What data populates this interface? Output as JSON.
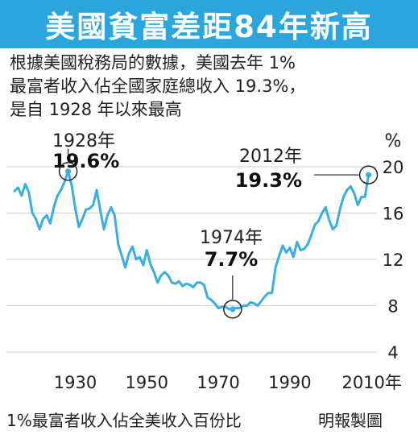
{
  "header": {
    "title": "美國貧富差距84年新高",
    "subtitle_lines": [
      "根據美國稅務局的數據，美國去年 1%",
      "最富者收入佔全國家庭總收入 19.3%，",
      "是自 1928 年以來最高"
    ]
  },
  "chart_data": {
    "type": "line",
    "title": "美國貧富差距84年新高",
    "xlabel": "",
    "ylabel": "%",
    "xlim": [
      1913,
      2013
    ],
    "ylim": [
      4,
      20
    ],
    "x_ticks": [
      "1930",
      "1950",
      "1970",
      "1990",
      "2010年"
    ],
    "x_tick_values": [
      1930,
      1950,
      1970,
      1990,
      2010
    ],
    "y_ticks": [
      4,
      8,
      12,
      16,
      20
    ],
    "grid": "horizontal",
    "y_axis_position": "right",
    "series": [
      {
        "values": [
          [
            1913,
            17.9
          ],
          [
            1914,
            18.2
          ],
          [
            1915,
            17.5
          ],
          [
            1916,
            18.5
          ],
          [
            1917,
            17.8
          ],
          [
            1918,
            16.0
          ],
          [
            1919,
            15.5
          ],
          [
            1920,
            14.6
          ],
          [
            1921,
            15.5
          ],
          [
            1922,
            15.8
          ],
          [
            1923,
            15.1
          ],
          [
            1924,
            16.5
          ],
          [
            1925,
            17.5
          ],
          [
            1926,
            18.0
          ],
          [
            1927,
            18.7
          ],
          [
            1928,
            19.6
          ],
          [
            1929,
            18.4
          ],
          [
            1930,
            16.4
          ],
          [
            1931,
            14.8
          ],
          [
            1932,
            15.5
          ],
          [
            1933,
            16.3
          ],
          [
            1934,
            16.4
          ],
          [
            1935,
            16.7
          ],
          [
            1936,
            18.0
          ],
          [
            1937,
            16.2
          ],
          [
            1938,
            14.6
          ],
          [
            1939,
            15.8
          ],
          [
            1940,
            16.5
          ],
          [
            1941,
            15.8
          ],
          [
            1942,
            13.3
          ],
          [
            1943,
            12.3
          ],
          [
            1944,
            11.3
          ],
          [
            1945,
            12.5
          ],
          [
            1946,
            13.1
          ],
          [
            1947,
            12.0
          ],
          [
            1948,
            12.2
          ],
          [
            1949,
            11.5
          ],
          [
            1950,
            12.8
          ],
          [
            1951,
            11.6
          ],
          [
            1952,
            10.9
          ],
          [
            1953,
            10.0
          ],
          [
            1954,
            10.6
          ],
          [
            1955,
            10.9
          ],
          [
            1956,
            10.6
          ],
          [
            1957,
            10.0
          ],
          [
            1958,
            9.9
          ],
          [
            1959,
            10.1
          ],
          [
            1960,
            9.7
          ],
          [
            1961,
            9.9
          ],
          [
            1962,
            9.8
          ],
          [
            1963,
            9.6
          ],
          [
            1964,
            10.0
          ],
          [
            1965,
            10.0
          ],
          [
            1966,
            9.8
          ],
          [
            1967,
            8.7
          ],
          [
            1968,
            8.5
          ],
          [
            1969,
            8.2
          ],
          [
            1970,
            7.8
          ],
          [
            1971,
            7.9
          ],
          [
            1972,
            7.9
          ],
          [
            1973,
            7.7
          ],
          [
            1974,
            7.7
          ],
          [
            1975,
            7.8
          ],
          [
            1976,
            7.8
          ],
          [
            1977,
            8.0
          ],
          [
            1978,
            8.0
          ],
          [
            1979,
            8.3
          ],
          [
            1980,
            8.2
          ],
          [
            1981,
            8.0
          ],
          [
            1982,
            8.4
          ],
          [
            1983,
            8.8
          ],
          [
            1984,
            9.1
          ],
          [
            1985,
            9.1
          ],
          [
            1986,
            11.3
          ],
          [
            1987,
            12.3
          ],
          [
            1988,
            13.2
          ],
          [
            1989,
            12.6
          ],
          [
            1990,
            13.0
          ],
          [
            1991,
            12.2
          ],
          [
            1992,
            13.5
          ],
          [
            1993,
            12.8
          ],
          [
            1994,
            12.9
          ],
          [
            1995,
            13.3
          ],
          [
            1996,
            14.1
          ],
          [
            1997,
            15.0
          ],
          [
            1998,
            15.3
          ],
          [
            1999,
            16.0
          ],
          [
            2000,
            16.5
          ],
          [
            2001,
            15.4
          ],
          [
            2002,
            14.6
          ],
          [
            2003,
            14.9
          ],
          [
            2004,
            16.3
          ],
          [
            2005,
            17.4
          ],
          [
            2006,
            18.0
          ],
          [
            2007,
            18.3
          ],
          [
            2008,
            17.7
          ],
          [
            2009,
            16.7
          ],
          [
            2010,
            17.4
          ],
          [
            2011,
            17.4
          ],
          [
            2012,
            19.3
          ]
        ]
      }
    ],
    "annotations": [
      {
        "year_label": "1928年",
        "value_label": "19.6%",
        "x": 1928,
        "y": 19.6
      },
      {
        "year_label": "1974年",
        "value_label": "7.7%",
        "x": 1974,
        "y": 7.7
      },
      {
        "year_label": "2012年",
        "value_label": "19.3%",
        "x": 2012,
        "y": 19.3
      }
    ],
    "colors": {
      "line": "#3aaee3",
      "marker_fill": "#ffffff",
      "grid": "#cfcfcf",
      "title_bar": "#2aa6dc"
    }
  },
  "footer": {
    "caption": "1%最富者收入佔全美收入百份比",
    "credit": "明報製圖"
  }
}
